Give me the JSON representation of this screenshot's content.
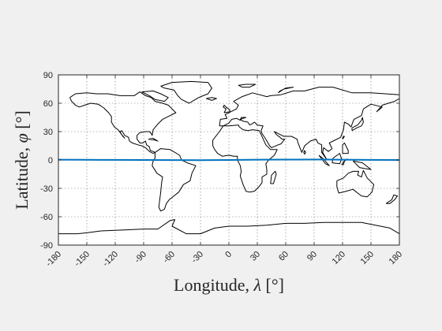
{
  "chart_data": {
    "type": "line",
    "title": "",
    "xlabel": {
      "text": "Longitude, ",
      "symbol": "λ",
      "unit": " [°]"
    },
    "ylabel": {
      "text": "Latitude, ",
      "symbol": "φ",
      "unit": " [°]"
    },
    "xlim": [
      -180,
      180
    ],
    "ylim": [
      -90,
      90
    ],
    "xticks": [
      -180,
      -150,
      -120,
      -90,
      -60,
      -30,
      0,
      30,
      60,
      90,
      120,
      150,
      180
    ],
    "yticks": [
      -90,
      -60,
      -30,
      0,
      30,
      60,
      90
    ],
    "grid": true,
    "basemap": "world-coastlines",
    "series": [
      {
        "name": "",
        "color": "#0072bd",
        "x": [
          -180,
          -150,
          -120,
          -90,
          -60,
          -30,
          0,
          30,
          60,
          90,
          120,
          150,
          180
        ],
        "y": [
          0.3,
          0.2,
          0.1,
          0.0,
          -0.1,
          -0.2,
          0.0,
          0.3,
          0.4,
          0.5,
          0.3,
          0.1,
          0.0
        ]
      }
    ]
  }
}
